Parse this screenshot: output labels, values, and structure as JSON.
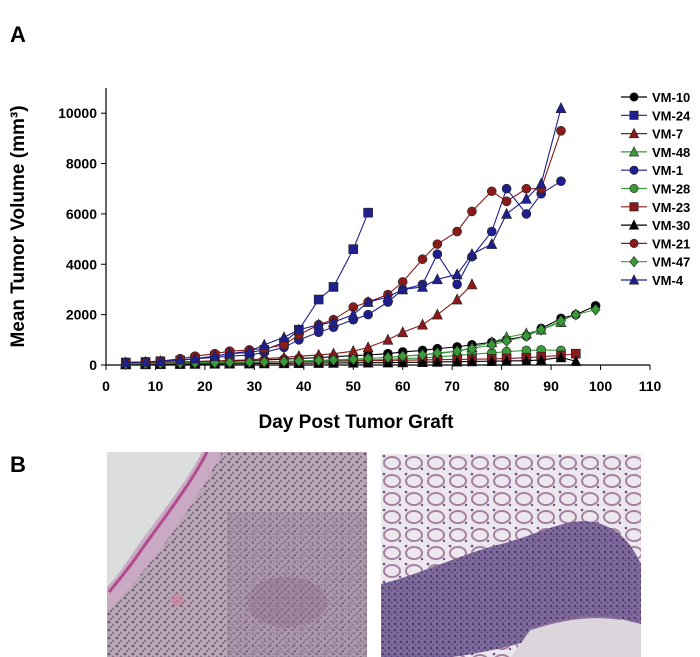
{
  "panel_labels": {
    "a": "A",
    "b": "B"
  },
  "chart_data": {
    "type": "line",
    "xlabel": "Day Post Tumor Graft",
    "ylabel": "Mean Tumor Volume (mm³)",
    "xlim": [
      0,
      110
    ],
    "ylim": [
      0,
      11000
    ],
    "xticks": [
      0,
      10,
      20,
      30,
      40,
      50,
      60,
      70,
      80,
      90,
      100,
      110
    ],
    "yticks": [
      0,
      2000,
      4000,
      6000,
      8000,
      10000
    ],
    "grid": false,
    "legend_position": "top-right",
    "series": [
      {
        "name": "VM-10",
        "color": "#000000",
        "marker": "circle",
        "x": [
          4,
          8,
          11,
          15,
          18,
          22,
          25,
          29,
          32,
          36,
          39,
          43,
          46,
          50,
          53,
          57,
          60,
          64,
          67,
          71,
          74,
          78,
          81,
          85,
          88,
          92,
          95,
          99
        ],
        "y": [
          80,
          90,
          100,
          110,
          130,
          150,
          160,
          180,
          200,
          230,
          260,
          290,
          330,
          370,
          400,
          450,
          520,
          580,
          650,
          720,
          800,
          900,
          1000,
          1150,
          1450,
          1850,
          2000,
          2350
        ]
      },
      {
        "name": "VM-24",
        "color": "#1f1f8f",
        "marker": "square",
        "x": [
          4,
          8,
          11,
          15,
          18,
          22,
          25,
          29,
          32,
          36,
          39,
          43,
          46,
          50,
          53
        ],
        "y": [
          100,
          120,
          150,
          180,
          250,
          350,
          450,
          500,
          600,
          900,
          1400,
          2600,
          3100,
          4600,
          6050
        ]
      },
      {
        "name": "VM-7",
        "color": "#8b1a1a",
        "marker": "triangle",
        "x": [
          4,
          8,
          11,
          15,
          18,
          22,
          25,
          29,
          32,
          36,
          39,
          43,
          46,
          50,
          53,
          57,
          60,
          64,
          67,
          71,
          74
        ],
        "y": [
          60,
          80,
          100,
          120,
          140,
          160,
          180,
          200,
          250,
          300,
          350,
          400,
          450,
          550,
          700,
          1000,
          1300,
          1600,
          2000,
          2600,
          3200
        ]
      },
      {
        "name": "VM-48",
        "color": "#3a9a3a",
        "marker": "triangle",
        "x": [
          4,
          8,
          11,
          15,
          18,
          22,
          25,
          29,
          32,
          36,
          39,
          43,
          46,
          50,
          53,
          57,
          60,
          64,
          67,
          71,
          74,
          78,
          81,
          85,
          88,
          92
        ],
        "y": [
          40,
          50,
          60,
          70,
          80,
          90,
          100,
          110,
          120,
          140,
          160,
          180,
          200,
          230,
          260,
          300,
          350,
          400,
          450,
          550,
          700,
          900,
          1100,
          1250,
          1400,
          1700
        ]
      },
      {
        "name": "VM-1",
        "color": "#1f1f8f",
        "marker": "circle",
        "x": [
          4,
          8,
          11,
          15,
          18,
          22,
          25,
          29,
          32,
          36,
          39,
          43,
          46,
          50,
          53,
          57,
          60,
          64,
          67,
          71,
          74,
          78,
          81,
          85,
          88,
          92
        ],
        "y": [
          100,
          120,
          150,
          200,
          250,
          300,
          350,
          400,
          500,
          700,
          1000,
          1300,
          1500,
          1800,
          2000,
          2500,
          3000,
          3200,
          4400,
          3200,
          4300,
          5300,
          7000,
          6000,
          6800,
          7300
        ]
      },
      {
        "name": "VM-28",
        "color": "#3a9a3a",
        "marker": "circle",
        "x": [
          4,
          8,
          11,
          15,
          18,
          22,
          25,
          29,
          32,
          36,
          39,
          43,
          46,
          50,
          53,
          57,
          60,
          64,
          67,
          71,
          74,
          78,
          81,
          85,
          88,
          92
        ],
        "y": [
          50,
          60,
          70,
          80,
          90,
          100,
          110,
          120,
          130,
          140,
          150,
          160,
          170,
          180,
          200,
          220,
          250,
          280,
          320,
          380,
          430,
          480,
          530,
          580,
          600,
          580
        ]
      },
      {
        "name": "VM-23",
        "color": "#8b1a1a",
        "marker": "square",
        "x": [
          4,
          8,
          11,
          15,
          18,
          22,
          25,
          29,
          32,
          36,
          39,
          43,
          46,
          50,
          53,
          57,
          60,
          64,
          67,
          71,
          74,
          78,
          81,
          85,
          88,
          92,
          95
        ],
        "y": [
          30,
          40,
          50,
          60,
          70,
          80,
          90,
          100,
          110,
          120,
          130,
          140,
          150,
          160,
          170,
          180,
          190,
          200,
          210,
          220,
          230,
          240,
          260,
          290,
          330,
          380,
          450
        ]
      },
      {
        "name": "VM-30",
        "color": "#000000",
        "marker": "triangle",
        "x": [
          4,
          8,
          11,
          15,
          18,
          22,
          25,
          29,
          32,
          36,
          39,
          43,
          46,
          50,
          53,
          57,
          60,
          64,
          67,
          71,
          74,
          78,
          81,
          85,
          88,
          92,
          95
        ],
        "y": [
          20,
          25,
          30,
          35,
          40,
          45,
          50,
          55,
          60,
          65,
          70,
          75,
          80,
          85,
          90,
          95,
          100,
          110,
          120,
          130,
          140,
          150,
          160,
          170,
          200,
          300,
          150
        ]
      },
      {
        "name": "VM-21",
        "color": "#8b1a1a",
        "marker": "circle",
        "x": [
          4,
          8,
          11,
          15,
          18,
          22,
          25,
          29,
          32,
          36,
          39,
          43,
          46,
          50,
          53,
          57,
          60,
          64,
          67,
          71,
          74,
          78,
          81,
          85,
          88,
          92
        ],
        "y": [
          80,
          100,
          150,
          250,
          350,
          450,
          550,
          600,
          650,
          800,
          1200,
          1600,
          1800,
          2300,
          2500,
          2800,
          3300,
          4200,
          4800,
          5300,
          6100,
          6900,
          6500,
          7000,
          7000,
          9300
        ]
      },
      {
        "name": "VM-47",
        "color": "#3a9a3a",
        "marker": "diamond",
        "x": [
          4,
          8,
          11,
          15,
          18,
          22,
          25,
          29,
          32,
          36,
          39,
          43,
          46,
          50,
          53,
          57,
          60,
          64,
          67,
          71,
          74,
          78,
          81,
          85,
          88,
          92,
          95,
          99
        ],
        "y": [
          40,
          50,
          60,
          70,
          80,
          90,
          100,
          110,
          120,
          140,
          160,
          180,
          200,
          230,
          260,
          300,
          350,
          400,
          480,
          550,
          650,
          800,
          950,
          1150,
          1400,
          1750,
          2000,
          2200
        ]
      },
      {
        "name": "VM-4",
        "color": "#1f1f8f",
        "marker": "triangle",
        "x": [
          4,
          8,
          11,
          15,
          18,
          22,
          25,
          29,
          32,
          36,
          39,
          43,
          46,
          50,
          53,
          57,
          60,
          64,
          67,
          71,
          74,
          78,
          81,
          85,
          88,
          92
        ],
        "y": [
          100,
          120,
          150,
          200,
          250,
          350,
          450,
          550,
          800,
          1100,
          1400,
          1600,
          1700,
          2000,
          2500,
          2700,
          3000,
          3100,
          3400,
          3600,
          4400,
          4800,
          6000,
          6600,
          7200,
          10200
        ]
      }
    ]
  },
  "micrographs": [
    {
      "name": "histology-left",
      "style": "dense-tumor-tissue"
    },
    {
      "name": "histology-right",
      "style": "lung-tissue"
    }
  ]
}
